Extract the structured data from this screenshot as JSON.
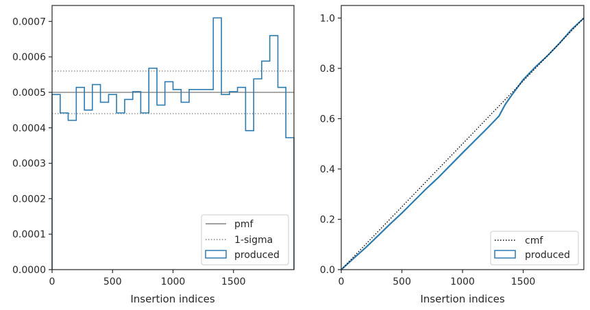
{
  "chart_data": [
    {
      "type": "step-histogram",
      "xlabel": "Insertion indices",
      "ylabel": "",
      "xlim": [
        0,
        2000
      ],
      "ylim": [
        0,
        0.000745
      ],
      "xticks": [
        0,
        500,
        1000,
        1500
      ],
      "xtick_labels": [
        "0",
        "500",
        "1000",
        "1500"
      ],
      "yticks": [
        0,
        0.0001,
        0.0002,
        0.0003,
        0.0004,
        0.0005,
        0.0006,
        0.0007
      ],
      "ytick_labels": [
        "0.0000",
        "0.0001",
        "0.0002",
        "0.0003",
        "0.0004",
        "0.0005",
        "0.0006",
        "0.0007"
      ],
      "bin_edges": [
        0,
        67,
        133,
        200,
        267,
        333,
        400,
        467,
        533,
        600,
        667,
        733,
        800,
        867,
        933,
        1000,
        1067,
        1133,
        1200,
        1267,
        1333,
        1400,
        1467,
        1533,
        1600,
        1667,
        1733,
        1800,
        1867,
        1933,
        2000
      ],
      "produced": [
        0.000494,
        0.000442,
        0.000421,
        0.000514,
        0.00045,
        0.000522,
        0.000472,
        0.000494,
        0.000442,
        0.00048,
        0.000502,
        0.000442,
        0.000568,
        0.000464,
        0.00053,
        0.000508,
        0.000472,
        0.000508,
        0.000508,
        0.000508,
        0.00071,
        0.000494,
        0.000502,
        0.000514,
        0.000392,
        0.000538,
        0.000588,
        0.00066,
        0.000514,
        0.000372
      ],
      "pmf": 0.0005,
      "sigma_upper": 0.00056,
      "sigma_lower": 0.00044,
      "legend": [
        "pmf",
        "1-sigma",
        "produced"
      ],
      "legend_position": "lower-right",
      "colors": {
        "produced": "#2b7bb0",
        "pmf": "#808080",
        "sigma": "#808080"
      }
    },
    {
      "type": "line",
      "xlabel": "Insertion indices",
      "ylabel": "",
      "xlim": [
        0,
        2000
      ],
      "ylim": [
        0,
        1.05
      ],
      "xticks": [
        0,
        500,
        1000,
        1500
      ],
      "xtick_labels": [
        "0",
        "500",
        "1000",
        "1500"
      ],
      "yticks": [
        0,
        0.2,
        0.4,
        0.6,
        0.8,
        1.0
      ],
      "ytick_labels": [
        "0.0",
        "0.2",
        "0.4",
        "0.6",
        "0.8",
        "1.0"
      ],
      "produced_x": [
        0,
        100,
        200,
        300,
        400,
        500,
        600,
        700,
        800,
        900,
        1000,
        1100,
        1200,
        1300,
        1350,
        1400,
        1500,
        1600,
        1700,
        1800,
        1900,
        2000
      ],
      "produced_y": [
        0,
        0.044,
        0.087,
        0.133,
        0.18,
        0.225,
        0.273,
        0.321,
        0.366,
        0.415,
        0.464,
        0.512,
        0.56,
        0.61,
        0.655,
        0.69,
        0.755,
        0.805,
        0.85,
        0.9,
        0.955,
        1.0
      ],
      "cmf_x": [
        0,
        2000
      ],
      "cmf_y": [
        0,
        1.0
      ],
      "legend": [
        "cmf",
        "produced"
      ],
      "legend_position": "lower-right",
      "colors": {
        "produced": "#2b7bb0",
        "cmf": "#000000"
      }
    }
  ]
}
